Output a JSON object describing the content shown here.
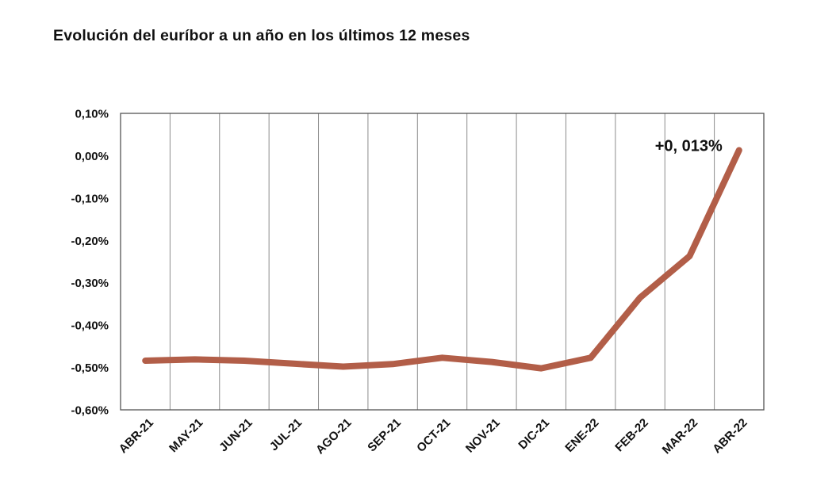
{
  "header": {
    "title": "Evolución del euríbor a un año en los últimos 12 meses"
  },
  "chart_data": {
    "type": "line",
    "title": "Evolución del euríbor a un año en los últimos 12 meses",
    "series_name": "euribor-12m",
    "categories": [
      "ABR-21",
      "MAY-21",
      "JUN-21",
      "JUL-21",
      "AGO-21",
      "SEP-21",
      "OCT-21",
      "NOV-21",
      "DIC-21",
      "ENE-22",
      "FEB-22",
      "MAR-22",
      "ABR-22"
    ],
    "values": [
      -0.484,
      -0.481,
      -0.484,
      -0.491,
      -0.498,
      -0.492,
      -0.477,
      -0.487,
      -0.502,
      -0.477,
      -0.335,
      -0.237,
      0.013
    ],
    "xlabel": "",
    "ylabel": "",
    "ylim": [
      -0.6,
      0.1
    ],
    "y_ticks": [
      0.1,
      0.0,
      -0.1,
      -0.2,
      -0.3,
      -0.4,
      -0.5,
      -0.6
    ],
    "y_tick_labels": [
      "0,10%",
      "0,00%",
      "-0,10%",
      "-0,20%",
      "-0,30%",
      "-0,40%",
      "-0,50%",
      "-0,60%"
    ],
    "grid": "vertical-only",
    "legend": "none",
    "annotation": {
      "text": "+0, 013%",
      "target_category": "ABR-22",
      "target_index": 12
    },
    "colors": {
      "line": "#b25e48",
      "gridline": "#8c8c8c",
      "frame": "#555555",
      "text": "#111111",
      "background": "#ffffff"
    }
  }
}
